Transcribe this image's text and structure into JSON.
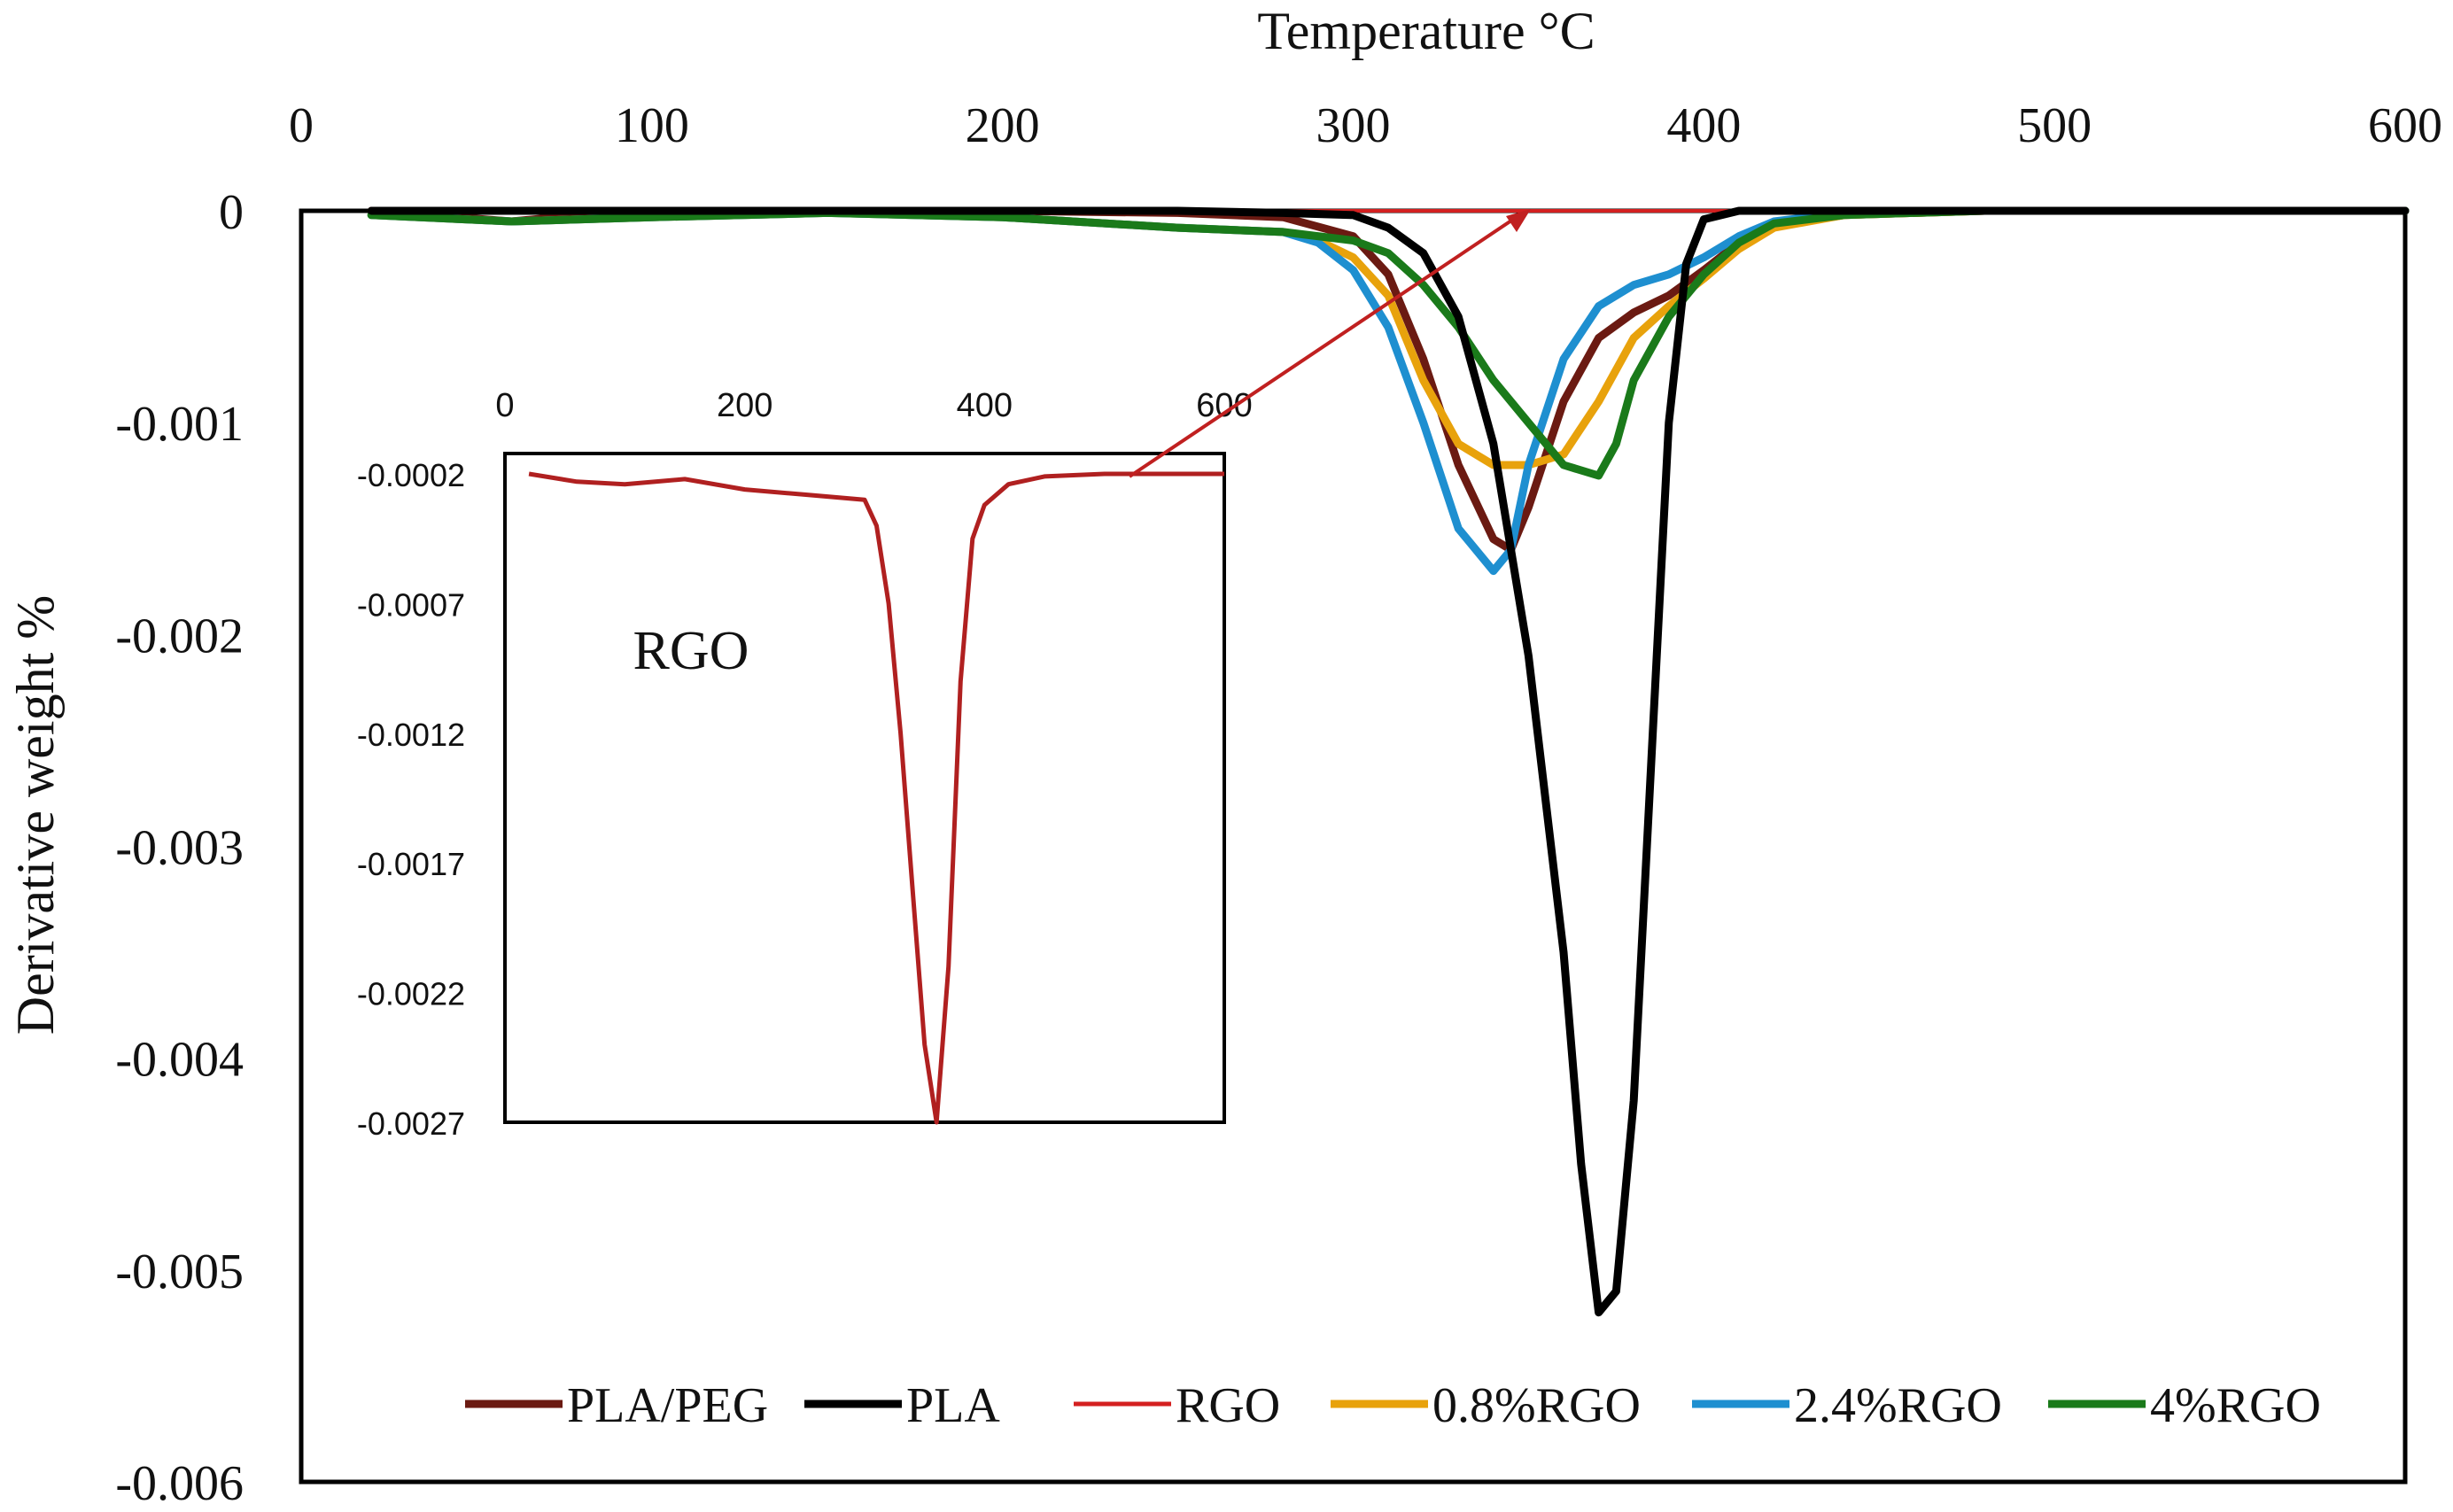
{
  "chart_data": {
    "type": "line",
    "title": "",
    "xlabel": "Temperature °C",
    "ylabel": "Derivative  weight %",
    "xlim": [
      0,
      600
    ],
    "ylim": [
      -0.006,
      0
    ],
    "x_ticks": [
      "0",
      "100",
      "200",
      "300",
      "400",
      "500",
      "600"
    ],
    "y_ticks": [
      "0",
      "-0.001",
      "-0.002",
      "-0.003",
      "-0.004",
      "-0.005",
      "-0.006"
    ],
    "legend_position": "bottom",
    "series": [
      {
        "name": "PLA/PEG",
        "color": "#6b1a12",
        "points": [
          [
            20,
            0
          ],
          [
            60,
            -5e-05
          ],
          [
            80,
            -2e-05
          ],
          [
            120,
            0
          ],
          [
            200,
            0
          ],
          [
            250,
            -1e-05
          ],
          [
            280,
            -3e-05
          ],
          [
            300,
            -0.00012
          ],
          [
            310,
            -0.0003
          ],
          [
            320,
            -0.0007
          ],
          [
            330,
            -0.0012
          ],
          [
            340,
            -0.00155
          ],
          [
            345,
            -0.0016
          ],
          [
            350,
            -0.0014
          ],
          [
            360,
            -0.0009
          ],
          [
            370,
            -0.0006
          ],
          [
            380,
            -0.00048
          ],
          [
            390,
            -0.0004
          ],
          [
            400,
            -0.00028
          ],
          [
            410,
            -0.00015
          ],
          [
            420,
            -7e-05
          ],
          [
            440,
            -2e-05
          ],
          [
            480,
            0
          ],
          [
            600,
            0
          ]
        ]
      },
      {
        "name": "PLA",
        "color": "#000000",
        "points": [
          [
            20,
            0
          ],
          [
            250,
            0
          ],
          [
            280,
            -1e-05
          ],
          [
            300,
            -2e-05
          ],
          [
            310,
            -8e-05
          ],
          [
            320,
            -0.0002
          ],
          [
            330,
            -0.0005
          ],
          [
            340,
            -0.0011
          ],
          [
            350,
            -0.0021
          ],
          [
            360,
            -0.0035
          ],
          [
            365,
            -0.0045
          ],
          [
            370,
            -0.0052
          ],
          [
            375,
            -0.0051
          ],
          [
            380,
            -0.0042
          ],
          [
            385,
            -0.0026
          ],
          [
            390,
            -0.001
          ],
          [
            395,
            -0.00025
          ],
          [
            400,
            -4e-05
          ],
          [
            410,
            0
          ],
          [
            600,
            0
          ]
        ]
      },
      {
        "name": "RGO",
        "color": "#d42020",
        "points": [
          [
            20,
            0
          ],
          [
            600,
            0
          ]
        ]
      },
      {
        "name": "0.8%RGO",
        "color": "#e8a20c",
        "points": [
          [
            20,
            -2e-05
          ],
          [
            60,
            -5e-05
          ],
          [
            100,
            -3e-05
          ],
          [
            150,
            -1e-05
          ],
          [
            200,
            -3e-05
          ],
          [
            250,
            -8e-05
          ],
          [
            280,
            -0.0001
          ],
          [
            290,
            -0.00014
          ],
          [
            300,
            -0.00022
          ],
          [
            310,
            -0.0004
          ],
          [
            320,
            -0.0008
          ],
          [
            330,
            -0.0011
          ],
          [
            340,
            -0.0012
          ],
          [
            350,
            -0.0012
          ],
          [
            360,
            -0.00115
          ],
          [
            370,
            -0.0009
          ],
          [
            380,
            -0.0006
          ],
          [
            390,
            -0.00045
          ],
          [
            400,
            -0.00032
          ],
          [
            410,
            -0.00018
          ],
          [
            420,
            -8e-05
          ],
          [
            440,
            -2e-05
          ],
          [
            480,
            0
          ],
          [
            600,
            0
          ]
        ]
      },
      {
        "name": "2.4%RGO",
        "color": "#1e8fd0",
        "points": [
          [
            20,
            -2e-05
          ],
          [
            60,
            -5e-05
          ],
          [
            100,
            -3e-05
          ],
          [
            150,
            -1e-05
          ],
          [
            200,
            -3e-05
          ],
          [
            250,
            -8e-05
          ],
          [
            280,
            -0.0001
          ],
          [
            290,
            -0.00015
          ],
          [
            300,
            -0.00028
          ],
          [
            310,
            -0.00055
          ],
          [
            320,
            -0.001
          ],
          [
            330,
            -0.0015
          ],
          [
            340,
            -0.0017
          ],
          [
            345,
            -0.0016
          ],
          [
            350,
            -0.0012
          ],
          [
            360,
            -0.0007
          ],
          [
            370,
            -0.00045
          ],
          [
            380,
            -0.00035
          ],
          [
            390,
            -0.0003
          ],
          [
            400,
            -0.00022
          ],
          [
            410,
            -0.00012
          ],
          [
            420,
            -5e-05
          ],
          [
            440,
            -1e-05
          ],
          [
            480,
            0
          ],
          [
            600,
            0
          ]
        ]
      },
      {
        "name": "4%RGO",
        "color": "#1a7a1a",
        "points": [
          [
            20,
            -2e-05
          ],
          [
            60,
            -5e-05
          ],
          [
            100,
            -3e-05
          ],
          [
            150,
            -1e-05
          ],
          [
            200,
            -3e-05
          ],
          [
            250,
            -8e-05
          ],
          [
            280,
            -0.0001
          ],
          [
            300,
            -0.00014
          ],
          [
            310,
            -0.0002
          ],
          [
            320,
            -0.00035
          ],
          [
            330,
            -0.00055
          ],
          [
            340,
            -0.0008
          ],
          [
            350,
            -0.001
          ],
          [
            360,
            -0.0012
          ],
          [
            370,
            -0.00125
          ],
          [
            375,
            -0.0011
          ],
          [
            380,
            -0.0008
          ],
          [
            390,
            -0.0005
          ],
          [
            400,
            -0.0003
          ],
          [
            410,
            -0.00015
          ],
          [
            420,
            -6e-05
          ],
          [
            440,
            -2e-05
          ],
          [
            480,
            0
          ],
          [
            600,
            0
          ]
        ]
      }
    ],
    "inset": {
      "title": "RGO",
      "xlim": [
        0,
        600
      ],
      "ylim": [
        -0.0027,
        -0.0002
      ],
      "x_ticks": [
        "0",
        "200",
        "400",
        "600"
      ],
      "y_ticks": [
        "-0.0002",
        "-0.0007",
        "-0.0012",
        "-0.0017",
        "-0.0022",
        "-0.0027"
      ],
      "series": {
        "name": "RGO",
        "color": "#b02020",
        "points": [
          [
            20,
            -0.0002
          ],
          [
            60,
            -0.00023
          ],
          [
            100,
            -0.00024
          ],
          [
            150,
            -0.00022
          ],
          [
            200,
            -0.00026
          ],
          [
            250,
            -0.00028
          ],
          [
            300,
            -0.0003
          ],
          [
            310,
            -0.0004
          ],
          [
            320,
            -0.0007
          ],
          [
            330,
            -0.0012
          ],
          [
            340,
            -0.0018
          ],
          [
            350,
            -0.0024
          ],
          [
            360,
            -0.0027
          ],
          [
            370,
            -0.0021
          ],
          [
            380,
            -0.001
          ],
          [
            390,
            -0.00045
          ],
          [
            400,
            -0.00032
          ],
          [
            420,
            -0.00024
          ],
          [
            450,
            -0.00021
          ],
          [
            500,
            -0.0002
          ],
          [
            600,
            -0.0002
          ]
        ]
      }
    }
  }
}
